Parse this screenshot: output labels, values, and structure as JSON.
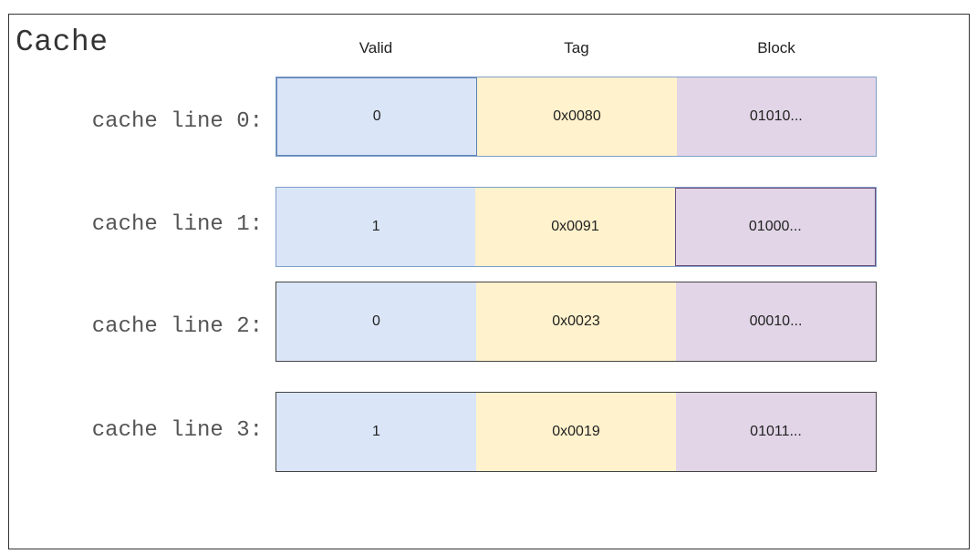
{
  "title": "Cache",
  "columns": {
    "valid": "Valid",
    "tag": "Tag",
    "block": "Block"
  },
  "colors": {
    "valid_fill": "#dae6f8",
    "tag_fill": "#fff2cc",
    "block_fill": "#e1d5e7",
    "border_blue": "#7f9ec8",
    "border_dark": "#444444",
    "label_gray": "#555555"
  },
  "lines": [
    {
      "label": "cache line 0:",
      "valid": "0",
      "tag": "0x0080",
      "block": "01010..."
    },
    {
      "label": "cache line 1:",
      "valid": "1",
      "tag": "0x0091",
      "block": "01000..."
    },
    {
      "label": "cache line 2:",
      "valid": "0",
      "tag": "0x0023",
      "block": "00010..."
    },
    {
      "label": "cache line 3:",
      "valid": "1",
      "tag": "0x0019",
      "block": "01011..."
    }
  ]
}
